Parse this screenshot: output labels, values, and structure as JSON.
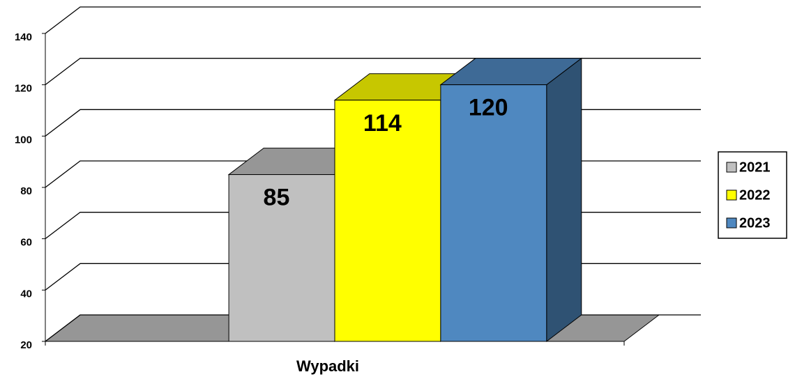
{
  "chart_data": {
    "type": "bar3d",
    "categories": [
      "Wypadki"
    ],
    "series": [
      {
        "name": "2021",
        "color": "#c0c0c0",
        "values": [
          85
        ]
      },
      {
        "name": "2022",
        "color": "#ffff00",
        "values": [
          114
        ]
      },
      {
        "name": "2023",
        "color": "#4f88c0",
        "values": [
          120
        ]
      }
    ],
    "ylim": [
      20,
      140
    ],
    "yticks": [
      20,
      40,
      60,
      80,
      100,
      120,
      140
    ],
    "grid": true,
    "legend": "right"
  }
}
